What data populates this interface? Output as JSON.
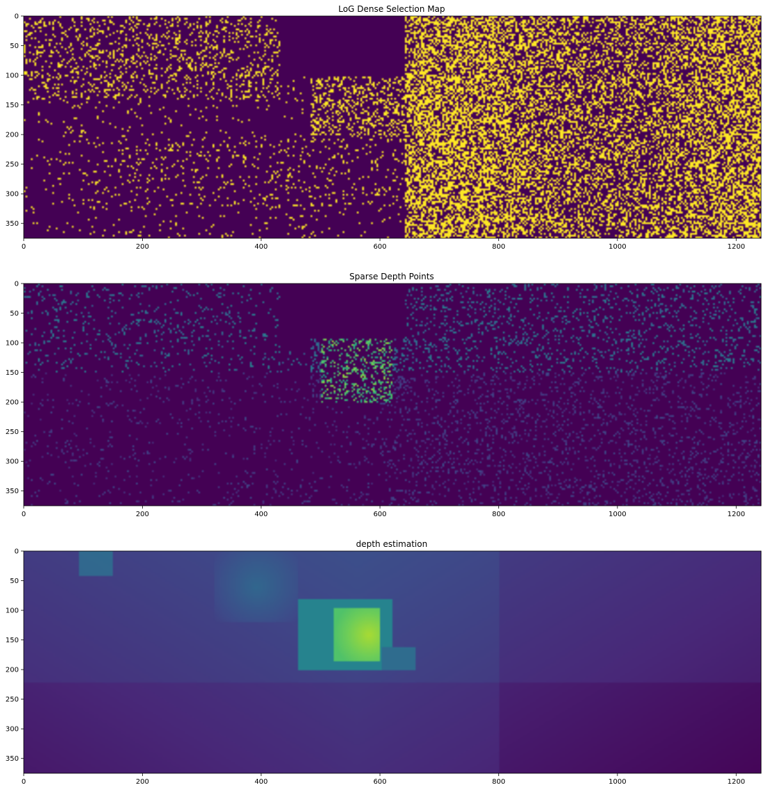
{
  "chart_data": [
    {
      "type": "heatmap",
      "title": "LoG Dense Selection Map",
      "xlabel": "",
      "ylabel": "",
      "image_width": 1242,
      "image_height": 375,
      "xlim": [
        0,
        1242
      ],
      "ylim": [
        375,
        0
      ],
      "xticks": [
        0,
        200,
        400,
        600,
        800,
        1000,
        1200
      ],
      "yticks": [
        0,
        50,
        100,
        150,
        200,
        250,
        300,
        350
      ],
      "colormap": "viridis",
      "value_range": [
        0,
        1
      ],
      "colors": {
        "low": "#440154",
        "high": "#fde725"
      },
      "description_regions": [
        {
          "x": [
            0,
            430
          ],
          "y": [
            0,
            140
          ],
          "density": 0.18
        },
        {
          "x": [
            430,
            640
          ],
          "y": [
            0,
            100
          ],
          "density": 0.0
        },
        {
          "x": [
            640,
            1242
          ],
          "y": [
            0,
            375
          ],
          "density": 0.45
        },
        {
          "x": [
            0,
            640
          ],
          "y": [
            200,
            375
          ],
          "density": 0.05
        }
      ]
    },
    {
      "type": "heatmap",
      "title": "Sparse Depth Points",
      "xlabel": "",
      "ylabel": "",
      "image_width": 1242,
      "image_height": 375,
      "xlim": [
        0,
        1242
      ],
      "ylim": [
        375,
        0
      ],
      "xticks": [
        0,
        200,
        400,
        600,
        800,
        1000,
        1200
      ],
      "yticks": [
        0,
        50,
        100,
        150,
        200,
        250,
        300,
        350
      ],
      "colormap": "viridis",
      "value_range": [
        0,
        1
      ]
    },
    {
      "type": "heatmap",
      "title": "depth estimation",
      "xlabel": "",
      "ylabel": "",
      "image_width": 1242,
      "image_height": 375,
      "xlim": [
        0,
        1242
      ],
      "ylim": [
        375,
        0
      ],
      "xticks": [
        0,
        200,
        400,
        600,
        800,
        1000,
        1200
      ],
      "yticks": [
        0,
        50,
        100,
        150,
        200,
        250,
        300,
        350
      ],
      "colormap": "viridis",
      "value_range": [
        0,
        1
      ],
      "bright_object": {
        "x": [
          520,
          610
        ],
        "y": [
          95,
          185
        ],
        "value": 0.85
      }
    }
  ]
}
